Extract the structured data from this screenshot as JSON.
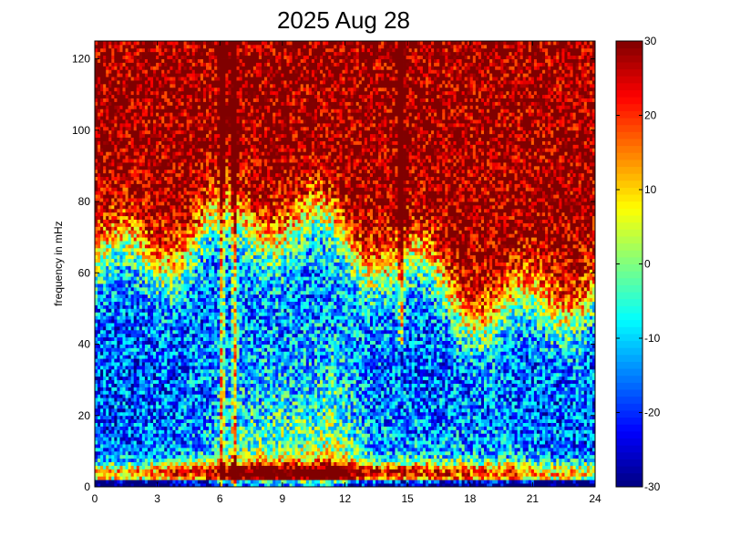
{
  "chart_data": {
    "type": "heatmap",
    "title": "2025 Aug 28",
    "xlabel": "",
    "ylabel": "frequency in mHz",
    "xlim": [
      0,
      24
    ],
    "ylim": [
      0,
      125
    ],
    "xticks": [
      0,
      3,
      6,
      9,
      12,
      15,
      18,
      21,
      24
    ],
    "yticks": [
      0,
      20,
      40,
      60,
      80,
      100,
      120
    ],
    "colorbar": {
      "colormap": "jet",
      "clim": [
        -30,
        30
      ],
      "ticks": [
        -30,
        -20,
        -10,
        0,
        10,
        20,
        30
      ]
    },
    "bands": [
      {
        "name": "strong low-frequency band",
        "y_range": [
          2,
          6
        ],
        "x_range": [
          0,
          24
        ],
        "level": 28
      },
      {
        "name": "broad activity region",
        "y_range": [
          6,
          50
        ],
        "x_range": [
          5,
          12
        ],
        "level": 8
      },
      {
        "name": "background high-frequency region",
        "y_range": [
          70,
          125
        ],
        "x_range": [
          0,
          24
        ],
        "level": 30
      }
    ],
    "spikes": [
      {
        "x": 6.1,
        "y_range": [
          0,
          125
        ]
      },
      {
        "x": 6.7,
        "y_range": [
          0,
          125
        ]
      },
      {
        "x": 14.7,
        "y_range": [
          40,
          125
        ]
      }
    ]
  }
}
